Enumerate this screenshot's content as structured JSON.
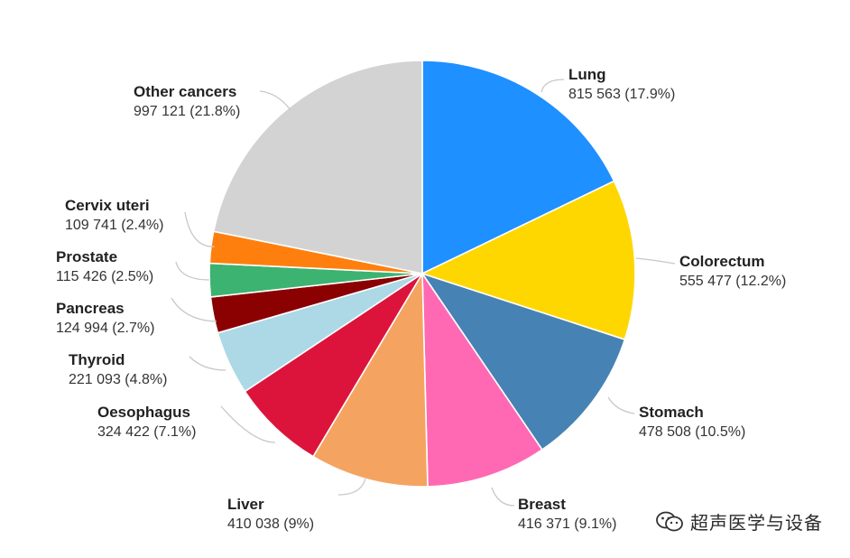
{
  "chart_data": {
    "type": "pie",
    "title": "",
    "slices": [
      {
        "name": "Lung",
        "value": 815563,
        "value_label": "815 563",
        "percent_label": "17.9%",
        "color": "#1E90FF"
      },
      {
        "name": "Colorectum",
        "value": 555477,
        "value_label": "555 477",
        "percent_label": "12.2%",
        "color": "#FFD700"
      },
      {
        "name": "Stomach",
        "value": 478508,
        "value_label": "478 508",
        "percent_label": "10.5%",
        "color": "#4682B4"
      },
      {
        "name": "Breast",
        "value": 416371,
        "value_label": "416 371",
        "percent_label": "9.1%",
        "color": "#FF69B4"
      },
      {
        "name": "Liver",
        "value": 410038,
        "value_label": "410 038",
        "percent_label": "9%",
        "color": "#F4A460"
      },
      {
        "name": "Oesophagus",
        "value": 324422,
        "value_label": "324 422",
        "percent_label": "7.1%",
        "color": "#DC143C"
      },
      {
        "name": "Thyroid",
        "value": 221093,
        "value_label": "221 093",
        "percent_label": "4.8%",
        "color": "#ADD8E6"
      },
      {
        "name": "Pancreas",
        "value": 124994,
        "value_label": "124 994",
        "percent_label": "2.7%",
        "color": "#8B0000"
      },
      {
        "name": "Prostate",
        "value": 115426,
        "value_label": "115 426",
        "percent_label": "2.5%",
        "color": "#3CB371"
      },
      {
        "name": "Cervix uteri",
        "value": 109741,
        "value_label": "109 741",
        "percent_label": "2.4%",
        "color": "#FF7F0E"
      },
      {
        "name": "Other cancers",
        "value": 997121,
        "value_label": "997 121",
        "percent_label": "21.8%",
        "color": "#D3D3D3"
      }
    ]
  },
  "watermark": {
    "text": "超声医学与设备",
    "icon": "wechat-official-account-icon"
  }
}
